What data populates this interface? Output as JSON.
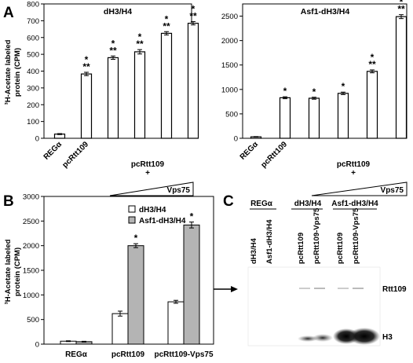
{
  "panel_labels": [
    "A",
    "B",
    "C"
  ],
  "colors": {
    "bar_open": "#ffffff",
    "bar_grey": "#b4b4b4",
    "ink": "#000000"
  },
  "chart_data": [
    {
      "id": "A1",
      "type": "bar",
      "title": "dH3/H4",
      "ylabel_line1": "³H-Acetate labeled",
      "ylabel_line2": "protein (CPM)",
      "ylim": [
        0,
        800
      ],
      "yticks": [
        0,
        100,
        200,
        300,
        400,
        500,
        600,
        700,
        800
      ],
      "ytick_labels": [
        "0",
        "100",
        "200",
        "300",
        "400",
        "500",
        "600",
        "700",
        "800"
      ],
      "categories": [
        "REGα",
        "pcRtt109",
        "",
        "",
        "",
        ""
      ],
      "values": [
        25,
        383,
        480,
        515,
        625,
        685
      ],
      "errors": [
        3,
        10,
        10,
        13,
        10,
        10
      ],
      "annotations": [
        "",
        "*\n**",
        "*\n**",
        "*\n**",
        "*\n**",
        "*\n**"
      ],
      "group_label_line1": "pcRtt109",
      "group_label_line2": "+",
      "wedge_label": "Vps75"
    },
    {
      "id": "A2",
      "type": "bar",
      "title": "Asf1-dH3/H4",
      "ylim": [
        0,
        2750
      ],
      "yticks": [
        0,
        500,
        1000,
        1500,
        2000,
        2500
      ],
      "ytick_labels": [
        "0",
        "500",
        "1000",
        "1500",
        "2000",
        "2500"
      ],
      "categories": [
        "REGα",
        "pcRtt109",
        "",
        "",
        "",
        ""
      ],
      "values": [
        30,
        830,
        820,
        920,
        1370,
        2490
      ],
      "errors": [
        5,
        20,
        20,
        25,
        30,
        40
      ],
      "annotations": [
        "",
        "*",
        "*",
        "*",
        "*\n**",
        "*\n**"
      ],
      "group_label_line1": "pcRtt109",
      "group_label_line2": "+",
      "wedge_label": "Vps75"
    },
    {
      "id": "B",
      "type": "bar",
      "ylabel_line1": "³H-Acetate labeled",
      "ylabel_line2": "protein (CPM)",
      "ylim": [
        0,
        3000
      ],
      "yticks": [
        0,
        500,
        1000,
        1500,
        2000,
        2500,
        3000
      ],
      "ytick_labels": [
        "0",
        "500",
        "1000",
        "1500",
        "2000",
        "2500",
        "3000"
      ],
      "categories": [
        "REGα",
        "pcRtt109",
        "pcRtt109-Vps75"
      ],
      "series": [
        {
          "name": "dH3/H4",
          "values": [
            60,
            620,
            860
          ],
          "errors": [
            8,
            50,
            30
          ]
        },
        {
          "name": "Asf1-dH3/H4",
          "values": [
            50,
            2000,
            2420
          ],
          "errors": [
            8,
            40,
            60
          ]
        }
      ],
      "annotations": [
        [
          "",
          ""
        ],
        [
          "",
          "*"
        ],
        [
          "",
          "*"
        ]
      ],
      "legend_position": "top-right"
    }
  ],
  "gel": {
    "group_labels": [
      "REGα",
      "dH3/H4",
      "Asf1-dH3/H4"
    ],
    "lanes": [
      "dH3/H4",
      "Asf1-dH3/H4",
      "pcRtt109",
      "pcRtt109-Vps75",
      "pcRtt109",
      "pcRtt109-Vps75"
    ],
    "band_labels": [
      "Rtt109",
      "H3"
    ]
  }
}
